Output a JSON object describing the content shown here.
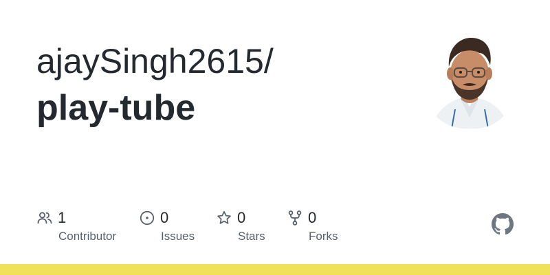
{
  "repo": {
    "owner": "ajaySingh2615/",
    "name": "play-tube"
  },
  "avatar": {
    "icon": "user-avatar-photo"
  },
  "stats": [
    {
      "icon": "people-icon",
      "value": "1",
      "label": "Contributor"
    },
    {
      "icon": "issue-circle-icon",
      "value": "0",
      "label": "Issues"
    },
    {
      "icon": "star-icon",
      "value": "0",
      "label": "Stars"
    },
    {
      "icon": "fork-icon",
      "value": "0",
      "label": "Forks"
    }
  ],
  "colors": {
    "text": "#24292f",
    "muted": "#57606a",
    "icon": "#57606a",
    "github_mark": "#6e7681",
    "language_bar": "#f1e05a"
  }
}
